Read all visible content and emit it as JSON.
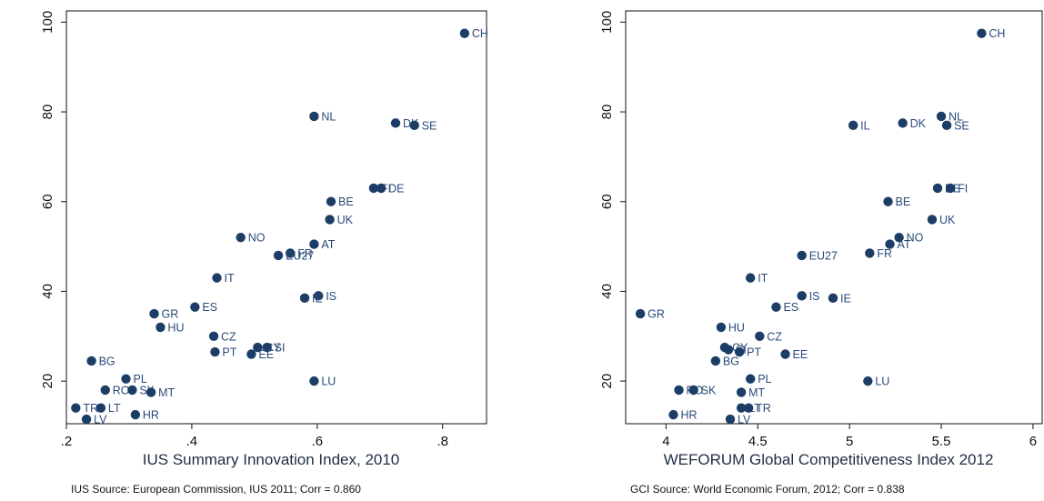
{
  "colors": {
    "marker": "#1c3d66",
    "label": "#2a4a7a",
    "axis": "#111111"
  },
  "chart_data": [
    {
      "type": "scatter",
      "xlabel": "IUS Summary Innovation Index, 2010",
      "ylabel": "",
      "source": "IUS Source: European Commission, IUS 2011; Corr = 0.860",
      "xlim": [
        0.2,
        0.87
      ],
      "ylim": [
        10.5,
        102.5
      ],
      "xticks": [
        0.2,
        0.4,
        0.6,
        0.8
      ],
      "xtick_labels": [
        ".2",
        ".4",
        ".6",
        ".8"
      ],
      "yticks": [
        20,
        40,
        60,
        80,
        100
      ],
      "ytick_labels": [
        "20",
        "40",
        "60",
        "80",
        "100"
      ],
      "points": [
        {
          "label": "CH",
          "x": 0.835,
          "y": 97.5
        },
        {
          "label": "NL",
          "x": 0.595,
          "y": 79.0
        },
        {
          "label": "DK",
          "x": 0.725,
          "y": 77.5
        },
        {
          "label": "SE",
          "x": 0.755,
          "y": 77.0
        },
        {
          "label": "FI",
          "x": 0.69,
          "y": 63.0
        },
        {
          "label": "DE",
          "x": 0.702,
          "y": 63.0
        },
        {
          "label": "BE",
          "x": 0.622,
          "y": 60.0
        },
        {
          "label": "UK",
          "x": 0.62,
          "y": 56.0
        },
        {
          "label": "NO",
          "x": 0.478,
          "y": 52.0
        },
        {
          "label": "AT",
          "x": 0.595,
          "y": 50.5
        },
        {
          "label": "FR",
          "x": 0.557,
          "y": 48.5
        },
        {
          "label": "EU27",
          "x": 0.538,
          "y": 48.0
        },
        {
          "label": "IT",
          "x": 0.44,
          "y": 43.0
        },
        {
          "label": "IS",
          "x": 0.602,
          "y": 39.0
        },
        {
          "label": "IE",
          "x": 0.58,
          "y": 38.5
        },
        {
          "label": "ES",
          "x": 0.405,
          "y": 36.5
        },
        {
          "label": "GR",
          "x": 0.34,
          "y": 35.0
        },
        {
          "label": "HU",
          "x": 0.35,
          "y": 32.0
        },
        {
          "label": "CZ",
          "x": 0.435,
          "y": 30.0
        },
        {
          "label": "CY",
          "x": 0.505,
          "y": 27.5
        },
        {
          "label": "SI",
          "x": 0.52,
          "y": 27.5
        },
        {
          "label": "PT",
          "x": 0.437,
          "y": 26.5
        },
        {
          "label": "EE",
          "x": 0.495,
          "y": 26.0
        },
        {
          "label": "BG",
          "x": 0.24,
          "y": 24.5
        },
        {
          "label": "PL",
          "x": 0.295,
          "y": 20.5
        },
        {
          "label": "LU",
          "x": 0.595,
          "y": 20.0
        },
        {
          "label": "RO",
          "x": 0.262,
          "y": 18.0
        },
        {
          "label": "SK",
          "x": 0.305,
          "y": 18.0
        },
        {
          "label": "MT",
          "x": 0.335,
          "y": 17.5
        },
        {
          "label": "TR",
          "x": 0.215,
          "y": 14.0
        },
        {
          "label": "LT",
          "x": 0.255,
          "y": 14.0
        },
        {
          "label": "HR",
          "x": 0.31,
          "y": 12.5
        },
        {
          "label": "LV",
          "x": 0.232,
          "y": 11.5
        }
      ]
    },
    {
      "type": "scatter",
      "xlabel": "WEFORUM Global Competitiveness Index 2012",
      "ylabel": "",
      "source": "GCI Source: World Economic Forum, 2012; Corr = 0.838",
      "xlim": [
        3.78,
        6.05
      ],
      "ylim": [
        10.5,
        102.5
      ],
      "xticks": [
        4.0,
        4.5,
        5.0,
        5.5,
        6.0
      ],
      "xtick_labels": [
        "4",
        "4.5",
        "5",
        "5.5",
        "6"
      ],
      "yticks": [
        20,
        40,
        60,
        80,
        100
      ],
      "ytick_labels": [
        "20",
        "40",
        "60",
        "80",
        "100"
      ],
      "points": [
        {
          "label": "CH",
          "x": 5.72,
          "y": 97.5
        },
        {
          "label": "NL",
          "x": 5.5,
          "y": 79.0
        },
        {
          "label": "IL",
          "x": 5.02,
          "y": 77.0
        },
        {
          "label": "DK",
          "x": 5.29,
          "y": 77.5
        },
        {
          "label": "SE",
          "x": 5.53,
          "y": 77.0
        },
        {
          "label": "DE",
          "x": 5.48,
          "y": 63.0
        },
        {
          "label": "FI",
          "x": 5.55,
          "y": 63.0
        },
        {
          "label": "BE",
          "x": 5.21,
          "y": 60.0
        },
        {
          "label": "UK",
          "x": 5.45,
          "y": 56.0
        },
        {
          "label": "NO",
          "x": 5.27,
          "y": 52.0
        },
        {
          "label": "AT",
          "x": 5.22,
          "y": 50.5
        },
        {
          "label": "EU27",
          "x": 4.74,
          "y": 48.0
        },
        {
          "label": "FR",
          "x": 5.11,
          "y": 48.5
        },
        {
          "label": "IT",
          "x": 4.46,
          "y": 43.0
        },
        {
          "label": "IS",
          "x": 4.74,
          "y": 39.0
        },
        {
          "label": "IE",
          "x": 4.91,
          "y": 38.5
        },
        {
          "label": "ES",
          "x": 4.6,
          "y": 36.5
        },
        {
          "label": "GR",
          "x": 3.86,
          "y": 35.0
        },
        {
          "label": "HU",
          "x": 4.3,
          "y": 32.0
        },
        {
          "label": "CZ",
          "x": 4.51,
          "y": 30.0
        },
        {
          "label": "CY",
          "x": 4.32,
          "y": 27.5
        },
        {
          "label": "SI",
          "x": 4.34,
          "y": 27.0
        },
        {
          "label": "PT",
          "x": 4.4,
          "y": 26.5
        },
        {
          "label": "EE",
          "x": 4.65,
          "y": 26.0
        },
        {
          "label": "BG",
          "x": 4.27,
          "y": 24.5
        },
        {
          "label": "PL",
          "x": 4.46,
          "y": 20.5
        },
        {
          "label": "LU",
          "x": 5.1,
          "y": 20.0
        },
        {
          "label": "RO",
          "x": 4.07,
          "y": 18.0
        },
        {
          "label": "SK",
          "x": 4.15,
          "y": 18.0
        },
        {
          "label": "MT",
          "x": 4.41,
          "y": 17.5
        },
        {
          "label": "LT",
          "x": 4.41,
          "y": 14.0
        },
        {
          "label": "TR",
          "x": 4.45,
          "y": 14.0
        },
        {
          "label": "HR",
          "x": 4.04,
          "y": 12.5
        },
        {
          "label": "LV",
          "x": 4.35,
          "y": 11.5
        }
      ]
    }
  ]
}
